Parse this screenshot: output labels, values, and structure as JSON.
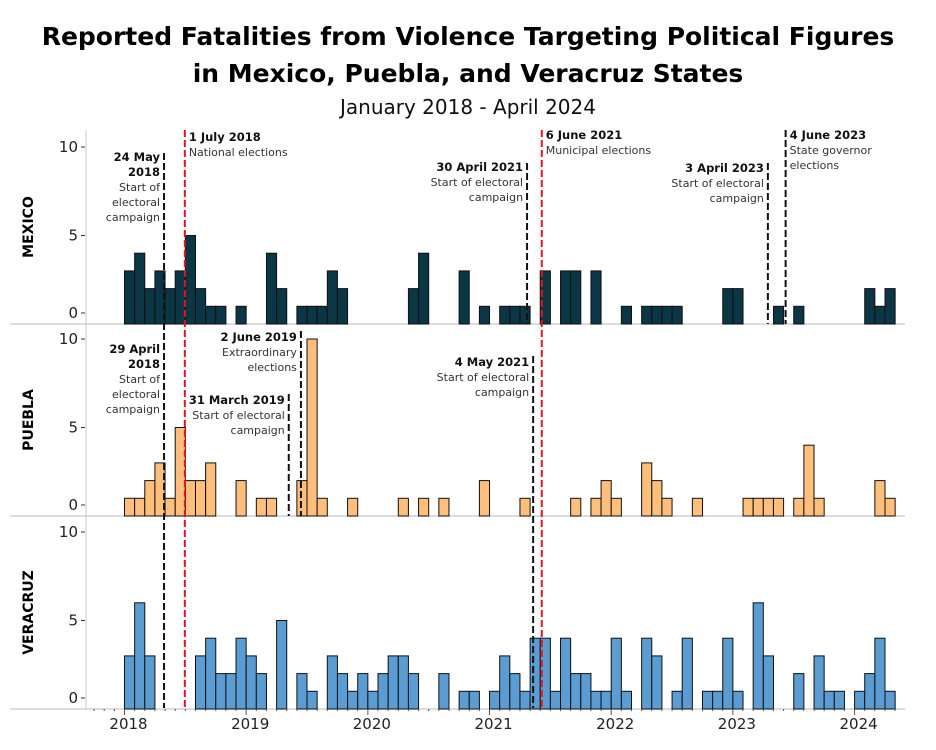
{
  "chart_data": {
    "type": "bar",
    "title_lines": [
      "Reported Fatalities from Violence Targeting Political Figures",
      "in Mexico, Puebla, and Veracruz States"
    ],
    "subtitle": "January 2018 - April 2024",
    "x_start": "2018-01",
    "x_end": "2024-04",
    "x_tick_labels": [
      "2018",
      "2019",
      "2020",
      "2021",
      "2022",
      "2023",
      "2024"
    ],
    "y_ticks": [
      "0",
      "5",
      "10"
    ],
    "ylim": [
      0,
      10
    ],
    "grid": false,
    "series": [
      {
        "name": "MEXICO",
        "color": "#0b3646",
        "values": [
          3,
          4,
          2,
          3,
          2,
          3,
          5,
          2,
          1,
          1,
          0,
          1,
          0,
          0,
          4,
          2,
          0,
          1,
          1,
          1,
          3,
          2,
          0,
          0,
          0,
          0,
          0,
          0,
          2,
          4,
          0,
          0,
          0,
          3,
          0,
          1,
          0,
          1,
          1,
          1,
          0,
          3,
          0,
          3,
          3,
          0,
          3,
          0,
          0,
          1,
          0,
          1,
          1,
          1,
          1,
          0,
          0,
          0,
          0,
          2,
          2,
          0,
          0,
          0,
          1,
          0,
          1,
          0,
          0,
          0,
          0,
          0,
          0,
          2,
          1,
          2
        ]
      },
      {
        "name": "PUEBLA",
        "color": "#fdbf7b",
        "values": [
          1,
          1,
          2,
          3,
          1,
          5,
          2,
          2,
          3,
          0,
          0,
          2,
          0,
          1,
          1,
          0,
          0,
          2,
          10,
          1,
          0,
          0,
          1,
          0,
          0,
          0,
          0,
          1,
          0,
          1,
          0,
          1,
          0,
          0,
          0,
          2,
          0,
          0,
          0,
          1,
          0,
          0,
          0,
          0,
          1,
          0,
          1,
          2,
          1,
          0,
          0,
          3,
          2,
          1,
          0,
          0,
          1,
          0,
          0,
          0,
          0,
          1,
          1,
          1,
          1,
          0,
          1,
          4,
          1,
          0,
          0,
          0,
          0,
          0,
          2,
          1
        ]
      },
      {
        "name": "VERACRUZ",
        "color": "#5b9cd2",
        "values": [
          3,
          6,
          3,
          0,
          0,
          0,
          0,
          3,
          4,
          2,
          2,
          4,
          3,
          2,
          0,
          5,
          0,
          2,
          1,
          0,
          3,
          2,
          1,
          2,
          1,
          2,
          3,
          3,
          2,
          0,
          0,
          2,
          0,
          1,
          1,
          0,
          1,
          3,
          2,
          1,
          4,
          4,
          1,
          4,
          2,
          2,
          1,
          1,
          4,
          1,
          0,
          4,
          3,
          0,
          1,
          4,
          0,
          1,
          1,
          4,
          1,
          0,
          6,
          3,
          0,
          0,
          2,
          0,
          3,
          1,
          1,
          0,
          1,
          2,
          4,
          1
        ]
      }
    ],
    "annotations": [
      {
        "panel": 0,
        "date_lines": [
          "24 May",
          "2018"
        ],
        "desc_lines": [
          "Start of",
          "electoral",
          "campaign"
        ],
        "month_pos": 3.9,
        "kind": "campaign"
      },
      {
        "panel": 0,
        "date_lines": [
          "1 July 2018"
        ],
        "desc_lines": [
          "National elections"
        ],
        "month_pos": 5.95,
        "kind": "election"
      },
      {
        "panel": 0,
        "date_lines": [
          "30 April 2021"
        ],
        "desc_lines": [
          "Start of electoral",
          "campaign"
        ],
        "month_pos": 39.7,
        "kind": "campaign"
      },
      {
        "panel": 0,
        "date_lines": [
          "6 June 2021"
        ],
        "desc_lines": [
          "Municipal elections"
        ],
        "month_pos": 41.15,
        "kind": "election"
      },
      {
        "panel": 0,
        "date_lines": [
          "3 April 2023"
        ],
        "desc_lines": [
          "Start of electoral",
          "campaign"
        ],
        "month_pos": 63.45,
        "kind": "campaign"
      },
      {
        "panel": 0,
        "date_lines": [
          "4 June 2023"
        ],
        "desc_lines": [
          "State governor",
          "elections"
        ],
        "month_pos": 65.2,
        "kind": "state-election"
      },
      {
        "panel": 1,
        "date_lines": [
          "29 April",
          "2018"
        ],
        "desc_lines": [
          "Start of",
          "electoral",
          "campaign"
        ],
        "month_pos": 3.9,
        "kind": "campaign"
      },
      {
        "panel": 1,
        "date_lines": [
          "2 June 2019"
        ],
        "desc_lines": [
          "Extraordinary",
          "elections"
        ],
        "month_pos": 17.4,
        "kind": "extraordinary"
      },
      {
        "panel": 1,
        "date_lines": [
          "31 March 2019"
        ],
        "desc_lines": [
          "Start of electoral",
          "campaign"
        ],
        "month_pos": 16.2,
        "kind": "campaign"
      },
      {
        "panel": 1,
        "date_lines": [
          "4 May 2021"
        ],
        "desc_lines": [
          "Start of electoral",
          "campaign"
        ],
        "month_pos": 40.3,
        "kind": "campaign"
      }
    ]
  }
}
